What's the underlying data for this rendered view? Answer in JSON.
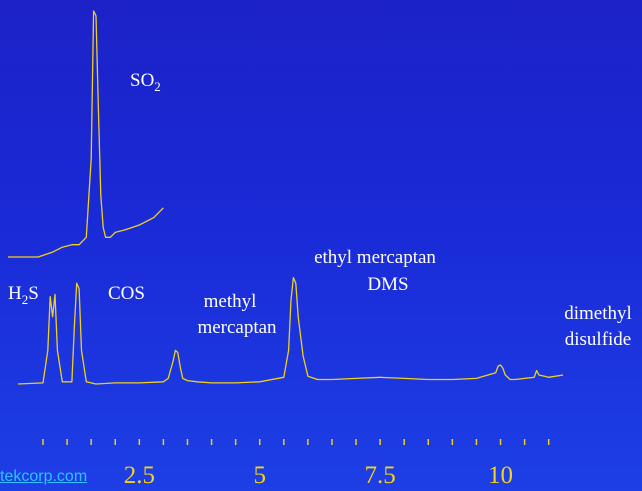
{
  "chart_data": {
    "type": "line",
    "title": "",
    "xlabel": "",
    "ylabel": "",
    "x_ticks": [
      2.5,
      5,
      7.5,
      10
    ],
    "xlim": [
      0,
      11.3
    ],
    "grid": false,
    "colors": {
      "trace": "#f0d020",
      "tick_label": "#f2d21a",
      "peak_label": "#ffffff",
      "watermark": "#2fc2ff"
    },
    "series": [
      {
        "x": [
          0,
          0.4,
          0.7,
          0.9,
          1.1,
          1.25,
          1.4,
          1.5,
          1.55,
          1.6,
          1.65,
          1.7,
          1.75,
          1.8,
          1.9,
          2.0,
          2.2,
          2.5,
          2.8,
          3.0
        ],
        "y": [
          0.0,
          0.0,
          0.02,
          0.04,
          0.05,
          0.05,
          0.08,
          0.4,
          1.0,
          0.98,
          0.6,
          0.25,
          0.12,
          0.08,
          0.08,
          0.1,
          0.11,
          0.13,
          0.16,
          0.2
        ]
      },
      {
        "x": [
          0,
          0.5,
          0.6,
          0.65,
          0.7,
          0.75,
          0.8,
          0.9,
          1.1,
          1.15,
          1.2,
          1.25,
          1.3,
          1.4,
          1.6,
          2.0,
          2.5,
          3.0,
          3.1,
          3.2,
          3.25,
          3.3,
          3.35,
          3.4,
          3.5,
          3.7,
          4.0,
          4.5,
          5.0,
          5.5,
          5.6,
          5.65,
          5.7,
          5.75,
          5.8,
          5.9,
          6.0,
          6.2,
          6.5,
          7.0,
          7.5,
          8.0,
          8.5,
          9.0,
          9.5,
          9.9,
          9.95,
          10.0,
          10.05,
          10.1,
          10.2,
          10.3,
          10.5,
          10.7,
          10.75,
          10.8,
          11.0,
          11.3
        ],
        "y": [
          0.0,
          0.01,
          0.3,
          0.78,
          0.6,
          0.8,
          0.3,
          0.02,
          0.02,
          0.5,
          0.9,
          0.85,
          0.3,
          0.02,
          0.0,
          0.01,
          0.01,
          0.02,
          0.05,
          0.2,
          0.3,
          0.28,
          0.15,
          0.05,
          0.03,
          0.02,
          0.01,
          0.01,
          0.02,
          0.06,
          0.3,
          0.75,
          0.95,
          0.9,
          0.6,
          0.25,
          0.07,
          0.04,
          0.04,
          0.05,
          0.06,
          0.05,
          0.04,
          0.04,
          0.05,
          0.1,
          0.16,
          0.17,
          0.14,
          0.08,
          0.04,
          0.04,
          0.05,
          0.06,
          0.12,
          0.08,
          0.06,
          0.08
        ]
      }
    ],
    "annotations": {
      "so2": "SO",
      "so2_sub": "2",
      "h2s_h": "H",
      "h2s_sub": "2",
      "h2s_s": "S",
      "cos": "COS",
      "methyl_line1": "methyl",
      "methyl_line2": "mercaptan",
      "ethyl_line1": "ethyl mercaptan",
      "ethyl_line2": "DMS",
      "dimethyl_line1": "dimethyl",
      "dimethyl_line2": "disulfide"
    }
  },
  "watermark": "tekcorp.com"
}
